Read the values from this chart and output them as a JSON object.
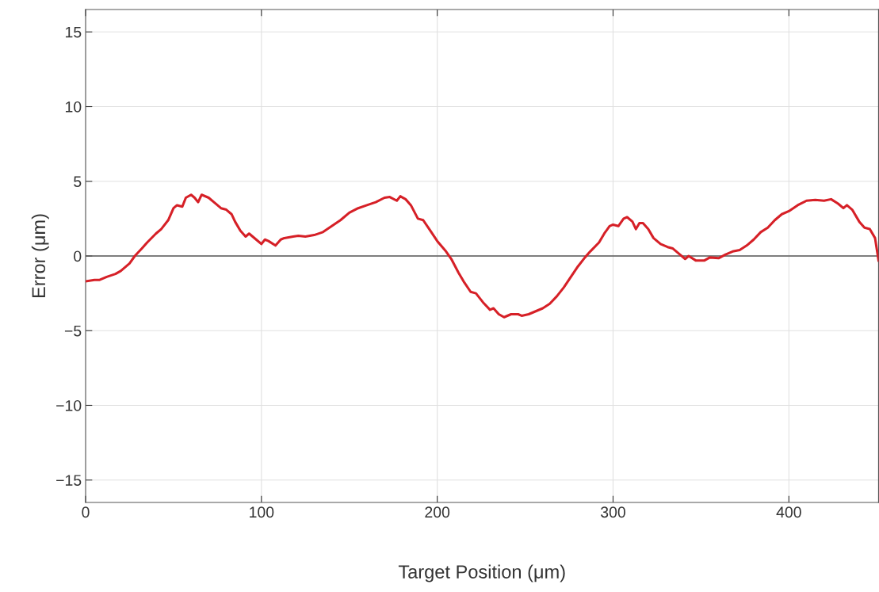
{
  "chart_data": {
    "type": "line",
    "xlabel": "Target Position (μm)",
    "ylabel": "Error (μm)",
    "xlim": [
      0,
      451
    ],
    "ylim": [
      -16.5,
      16.5
    ],
    "xticks": [
      0,
      100,
      200,
      300,
      400
    ],
    "yticks": [
      {
        "value": -15,
        "label": "−15"
      },
      {
        "value": -10,
        "label": "−10"
      },
      {
        "value": -5,
        "label": "−5"
      },
      0,
      5,
      10,
      15
    ],
    "grid": true,
    "line_style": "solid",
    "marker": "none",
    "ref_lines": [
      {
        "axis": "y",
        "value": 0,
        "color": "#595959",
        "line_style": "solid"
      }
    ],
    "series": [
      {
        "color": "#d62027",
        "x": [
          0,
          5,
          8,
          12,
          17,
          20,
          25,
          28,
          32,
          35,
          40,
          43,
          47,
          50,
          52,
          55,
          57,
          60,
          62,
          64,
          66,
          70,
          73,
          77,
          80,
          83,
          85,
          88,
          91,
          93,
          97,
          100,
          102,
          104,
          108,
          111,
          113,
          118,
          121,
          125,
          130,
          135,
          140,
          145,
          150,
          155,
          160,
          165,
          170,
          173,
          177,
          179,
          182,
          185,
          189,
          192,
          196,
          200,
          205,
          208,
          212,
          215,
          219,
          222,
          226,
          230,
          232,
          235,
          238,
          242,
          246,
          248,
          252,
          256,
          260,
          264,
          268,
          272,
          276,
          280,
          284,
          287,
          292,
          295,
          298,
          300,
          303,
          306,
          308,
          311,
          313,
          315,
          317,
          320,
          323,
          327,
          331,
          334,
          338,
          341,
          343,
          347,
          350,
          352,
          355,
          360,
          364,
          368,
          372,
          376,
          380,
          384,
          388,
          392,
          396,
          400,
          405,
          410,
          415,
          420,
          424,
          428,
          431,
          433,
          436,
          440,
          443,
          446,
          449,
          451
        ],
        "values": [
          -1.7,
          -1.6,
          -1.6,
          -1.4,
          -1.2,
          -1.0,
          -0.5,
          0,
          0.5,
          0.9,
          1.5,
          1.8,
          2.4,
          3.2,
          3.4,
          3.3,
          3.9,
          4.1,
          3.9,
          3.6,
          4.1,
          3.9,
          3.6,
          3.2,
          3.1,
          2.8,
          2.3,
          1.7,
          1.3,
          1.5,
          1.1,
          0.8,
          1.1,
          1.0,
          0.7,
          1.1,
          1.2,
          1.3,
          1.35,
          1.3,
          1.4,
          1.6,
          2.0,
          2.4,
          2.9,
          3.2,
          3.4,
          3.6,
          3.9,
          3.95,
          3.7,
          4.0,
          3.8,
          3.4,
          2.5,
          2.4,
          1.7,
          1.0,
          0.3,
          -0.2,
          -1.1,
          -1.7,
          -2.4,
          -2.5,
          -3.1,
          -3.6,
          -3.5,
          -3.9,
          -4.1,
          -3.9,
          -3.9,
          -4.0,
          -3.9,
          -3.7,
          -3.5,
          -3.2,
          -2.7,
          -2.1,
          -1.4,
          -0.7,
          -0.1,
          0.3,
          0.9,
          1.5,
          2.0,
          2.1,
          2.0,
          2.5,
          2.6,
          2.3,
          1.8,
          2.2,
          2.2,
          1.8,
          1.2,
          0.8,
          0.6,
          0.5,
          0.1,
          -0.2,
          0.0,
          -0.3,
          -0.3,
          -0.3,
          -0.1,
          -0.15,
          0.1,
          0.3,
          0.4,
          0.7,
          1.1,
          1.6,
          1.9,
          2.4,
          2.8,
          3.0,
          3.4,
          3.7,
          3.75,
          3.7,
          3.8,
          3.5,
          3.2,
          3.4,
          3.1,
          2.3,
          1.9,
          1.8,
          1.2,
          -0.3
        ]
      }
    ]
  }
}
